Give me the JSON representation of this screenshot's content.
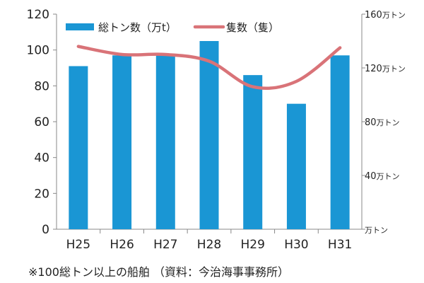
{
  "chart_data": {
    "type": "bar",
    "categories": [
      "H25",
      "H26",
      "H27",
      "H28",
      "H29",
      "H30",
      "H31"
    ],
    "series": [
      {
        "name": "総トン数（万t）",
        "type": "bar",
        "axis": "left",
        "values": [
          91,
          97,
          97,
          105,
          86,
          70,
          97
        ]
      },
      {
        "name": "隻数（隻）",
        "type": "line",
        "axis": "right",
        "values": [
          136,
          130,
          130,
          125,
          106,
          110,
          135
        ]
      }
    ],
    "ylim": [
      0,
      120
    ],
    "yticks": [
      "0",
      "20",
      "40",
      "60",
      "80",
      "100",
      "120"
    ],
    "y2lim": [
      0,
      160
    ],
    "y2ticks": [
      {
        "num": "160",
        "unit": "万トン"
      },
      {
        "num": "120",
        "unit": "万トン"
      },
      {
        "num": "80",
        "unit": "万トン"
      },
      {
        "num": "40",
        "unit": "万トン"
      },
      {
        "num": "",
        "unit": "万トン"
      }
    ],
    "legend": "top",
    "colors": {
      "bar": "#1a96d4",
      "line": "#d97378",
      "grid": "#bbbbbb",
      "axis": "#888888"
    },
    "grid": false
  },
  "footnote": "※100総トン以上の船舶 （資料：今治海事事務所）"
}
